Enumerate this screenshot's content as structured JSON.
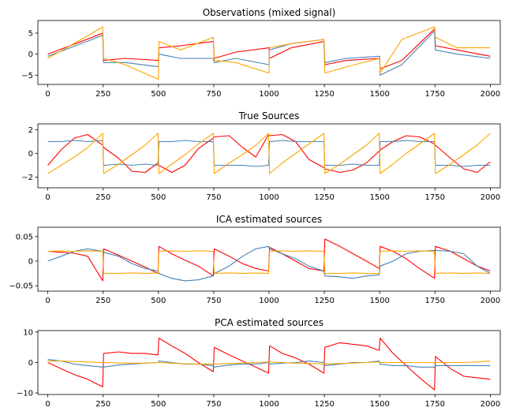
{
  "chart_data": [
    {
      "type": "line",
      "title": "Observations (mixed signal)",
      "xlim": [
        -45,
        2045
      ],
      "ylim": [
        -7.2,
        8.0
      ],
      "xticks": [
        0,
        250,
        500,
        750,
        1000,
        1250,
        1500,
        1750,
        2000
      ],
      "yticks": [
        5,
        0,
        -5
      ],
      "x": [
        0,
        100,
        200,
        248,
        252,
        350,
        500,
        502,
        600,
        748,
        752,
        850,
        1000,
        1002,
        1100,
        1248,
        1252,
        1350,
        1500,
        1502,
        1600,
        1748,
        1752,
        1850,
        2000
      ],
      "series": [
        {
          "color": "#ff0000",
          "values": [
            0,
            2.0,
            4.0,
            5.0,
            -1.5,
            -1.0,
            -1.5,
            1.5,
            2.0,
            3.0,
            -1.0,
            0.5,
            1.5,
            -1.0,
            1.5,
            3.0,
            -2.5,
            -1.5,
            -1.0,
            -3.5,
            -1.5,
            6.0,
            2.0,
            1.0,
            -0.5
          ]
        },
        {
          "color": "#4682b4",
          "values": [
            -0.5,
            1.5,
            3.5,
            4.5,
            -2.0,
            -2.0,
            -3.0,
            0.0,
            -1.0,
            -1.0,
            -2.0,
            -1.0,
            -2.5,
            1.0,
            2.5,
            3.5,
            -2.0,
            -1.0,
            -0.5,
            -5.0,
            -2.5,
            5.5,
            1.0,
            0.0,
            -1.0
          ]
        },
        {
          "color": "#ffa500",
          "values": [
            -1.0,
            2.0,
            5.0,
            6.5,
            -1.0,
            -2.5,
            -6.0,
            3.0,
            1.0,
            4.0,
            -1.5,
            -2.0,
            -4.5,
            1.5,
            2.5,
            3.5,
            -4.5,
            -3.0,
            -1.0,
            -4.5,
            3.5,
            6.5,
            4.0,
            1.5,
            1.5
          ]
        }
      ]
    },
    {
      "type": "line",
      "title": "True Sources",
      "xlim": [
        -45,
        2045
      ],
      "ylim": [
        -2.9,
        2.5
      ],
      "xticks": [
        0,
        250,
        500,
        750,
        1000,
        1250,
        1500,
        1750,
        2000
      ],
      "yticks": [
        2,
        0,
        -2
      ],
      "x": [
        0,
        60,
        120,
        180,
        248,
        252,
        320,
        380,
        440,
        498,
        502,
        560,
        620,
        680,
        748,
        752,
        820,
        880,
        940,
        998,
        1002,
        1060,
        1120,
        1180,
        1248,
        1252,
        1320,
        1380,
        1440,
        1498,
        1502,
        1560,
        1620,
        1680,
        1748,
        1752,
        1820,
        1880,
        1940,
        2000
      ],
      "series": [
        {
          "color": "#ff0000",
          "values": [
            -1.0,
            0.3,
            1.3,
            1.6,
            0.7,
            0.5,
            -0.4,
            -1.5,
            -1.6,
            -0.8,
            -1.0,
            -1.6,
            -1.0,
            0.4,
            1.3,
            1.4,
            1.5,
            0.5,
            -0.3,
            1.6,
            1.5,
            1.6,
            1.0,
            -0.5,
            -1.2,
            -1.3,
            -1.6,
            -1.4,
            -0.8,
            0.2,
            0.3,
            1.0,
            1.5,
            1.4,
            0.8,
            0.7,
            -0.4,
            -1.3,
            -1.6,
            -0.7
          ]
        },
        {
          "color": "#4682b4",
          "values": [
            1.0,
            1.0,
            1.1,
            1.0,
            1.1,
            -1.0,
            -0.9,
            -1.0,
            -0.9,
            -1.0,
            1.0,
            1.0,
            1.1,
            1.0,
            1.0,
            -1.0,
            -1.0,
            -1.0,
            -1.1,
            -1.0,
            1.0,
            1.1,
            1.0,
            1.0,
            1.0,
            -1.0,
            -1.0,
            -0.9,
            -1.0,
            -1.0,
            1.0,
            1.0,
            1.1,
            1.0,
            1.0,
            -1.0,
            -1.0,
            -1.1,
            -1.0,
            -1.0
          ]
        },
        {
          "color": "#ffa500",
          "values": [
            -1.7,
            -1.0,
            -0.3,
            0.5,
            1.7,
            -1.7,
            -0.9,
            -0.1,
            0.7,
            1.7,
            -1.7,
            -0.9,
            -0.1,
            0.8,
            1.7,
            -1.7,
            -0.8,
            -0.1,
            0.7,
            1.7,
            -1.7,
            -0.8,
            0.0,
            0.8,
            1.7,
            -1.7,
            -0.9,
            -0.1,
            0.7,
            1.7,
            -1.7,
            -0.9,
            0.0,
            0.8,
            1.7,
            -1.7,
            -0.9,
            -0.1,
            0.7,
            1.7
          ]
        }
      ]
    },
    {
      "type": "line",
      "title": "ICA estimated sources",
      "xlim": [
        -45,
        2045
      ],
      "ylim": [
        -0.061,
        0.069
      ],
      "xticks": [
        0,
        250,
        500,
        750,
        1000,
        1250,
        1500,
        1750,
        2000
      ],
      "yticks": [
        0.05,
        0.0,
        -0.05
      ],
      "x": [
        0,
        60,
        120,
        180,
        248,
        252,
        320,
        380,
        440,
        498,
        502,
        560,
        620,
        680,
        748,
        752,
        820,
        880,
        940,
        998,
        1002,
        1060,
        1120,
        1180,
        1248,
        1252,
        1320,
        1380,
        1440,
        1498,
        1502,
        1560,
        1620,
        1680,
        1748,
        1752,
        1820,
        1880,
        1940,
        2000
      ],
      "series": [
        {
          "color": "#ff0000",
          "values": [
            0.02,
            0.018,
            0.016,
            0.01,
            -0.04,
            0.025,
            0.012,
            0.0,
            -0.012,
            -0.025,
            0.03,
            0.015,
            0.002,
            -0.01,
            -0.03,
            0.025,
            0.01,
            -0.005,
            -0.015,
            -0.02,
            0.028,
            0.015,
            0.0,
            -0.015,
            -0.02,
            0.045,
            0.03,
            0.015,
            0.0,
            -0.015,
            0.03,
            0.02,
            0.005,
            -0.015,
            -0.035,
            0.03,
            0.02,
            0.005,
            -0.01,
            -0.02
          ]
        },
        {
          "color": "#4682b4",
          "values": [
            0.0,
            0.01,
            0.02,
            0.025,
            0.02,
            0.018,
            0.01,
            -0.005,
            -0.015,
            -0.02,
            -0.025,
            -0.035,
            -0.04,
            -0.038,
            -0.03,
            -0.025,
            -0.01,
            0.01,
            0.025,
            0.03,
            0.025,
            0.015,
            0.005,
            -0.01,
            -0.02,
            -0.03,
            -0.032,
            -0.035,
            -0.03,
            -0.028,
            -0.01,
            0.0,
            0.015,
            0.02,
            0.022,
            0.022,
            0.02,
            0.015,
            -0.01,
            -0.025
          ]
        },
        {
          "color": "#ffa500",
          "values": [
            0.02,
            0.021,
            0.02,
            0.021,
            0.02,
            -0.025,
            -0.025,
            -0.024,
            -0.025,
            -0.024,
            0.02,
            0.021,
            0.02,
            0.021,
            0.02,
            -0.025,
            -0.024,
            -0.025,
            -0.024,
            -0.025,
            0.02,
            0.021,
            0.02,
            0.021,
            0.02,
            -0.025,
            -0.025,
            -0.024,
            -0.025,
            -0.025,
            0.02,
            0.021,
            0.02,
            0.021,
            0.02,
            -0.025,
            -0.024,
            -0.025,
            -0.024,
            -0.025
          ]
        }
      ]
    },
    {
      "type": "line",
      "title": "PCA estimated sources",
      "xlim": [
        -45,
        2045
      ],
      "ylim": [
        -10.5,
        10.5
      ],
      "xticks": [
        0,
        250,
        500,
        750,
        1000,
        1250,
        1500,
        1750,
        2000
      ],
      "yticks": [
        10,
        0,
        -10
      ],
      "x": [
        0,
        60,
        120,
        180,
        248,
        252,
        320,
        380,
        440,
        498,
        502,
        560,
        620,
        680,
        748,
        752,
        820,
        880,
        940,
        998,
        1002,
        1060,
        1120,
        1180,
        1248,
        1252,
        1320,
        1380,
        1440,
        1498,
        1502,
        1560,
        1620,
        1680,
        1748,
        1752,
        1820,
        1880,
        1940,
        2000
      ],
      "series": [
        {
          "color": "#ff0000",
          "values": [
            0.0,
            -2.0,
            -4.0,
            -5.5,
            -8.0,
            3.0,
            3.5,
            3.0,
            3.0,
            2.5,
            8.0,
            5.5,
            3.0,
            0.0,
            -3.0,
            5.0,
            2.5,
            0.5,
            -1.5,
            -3.5,
            5.5,
            3.0,
            1.5,
            -0.5,
            -3.5,
            5.0,
            6.5,
            6.0,
            5.5,
            4.0,
            8.0,
            3.0,
            -1.0,
            -5.0,
            -9.0,
            2.0,
            -2.0,
            -4.5,
            -5.0,
            -5.5
          ]
        },
        {
          "color": "#4682b4",
          "values": [
            1.0,
            0.5,
            -0.5,
            -1.0,
            -1.5,
            -1.5,
            -0.8,
            -0.5,
            -0.2,
            0.0,
            0.5,
            0.0,
            -0.5,
            -0.5,
            -1.0,
            -1.5,
            -0.8,
            -0.5,
            -0.5,
            0.0,
            -0.5,
            -0.2,
            0.0,
            0.5,
            0.0,
            -1.0,
            -0.5,
            0.0,
            0.0,
            0.5,
            -0.5,
            -1.0,
            -1.0,
            -1.5,
            -1.5,
            -1.0,
            -1.0,
            -1.0,
            -1.0,
            -1.0
          ]
        },
        {
          "color": "#ffa500",
          "values": [
            0.5,
            0.5,
            0.3,
            0.2,
            0.0,
            0.0,
            -0.1,
            -0.2,
            -0.2,
            0.0,
            0.0,
            -0.2,
            -0.4,
            -0.5,
            -0.5,
            -0.5,
            -0.3,
            -0.2,
            0.0,
            0.2,
            0.2,
            0.0,
            -0.2,
            -0.3,
            -0.5,
            -0.5,
            -0.3,
            -0.2,
            0.0,
            0.2,
            0.0,
            0.0,
            0.0,
            0.0,
            0.0,
            0.0,
            0.0,
            0.0,
            0.2,
            0.5
          ]
        }
      ]
    }
  ]
}
